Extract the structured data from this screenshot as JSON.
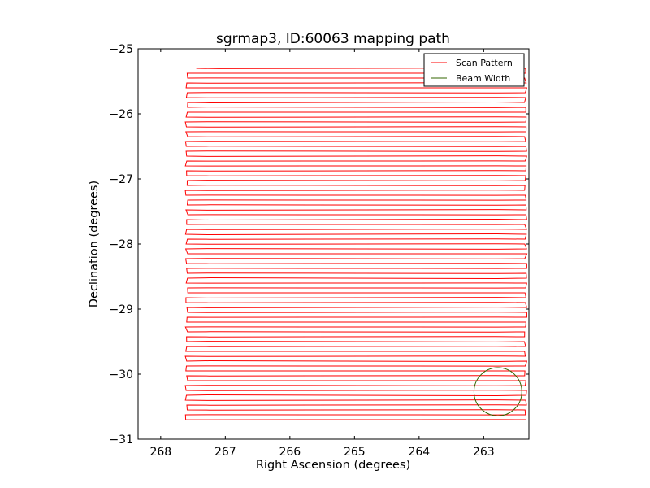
{
  "chart_data": {
    "type": "line",
    "title": "sgrmap3, ID:60063 mapping path",
    "xlabel": "Right Ascension (degrees)",
    "ylabel": "Declination (degrees)",
    "xlim": [
      268.35,
      262.3
    ],
    "ylim": [
      -31,
      -25
    ],
    "x_reversed": true,
    "xticks": [
      268,
      267,
      266,
      265,
      264,
      263
    ],
    "xtick_labels": [
      "268",
      "267",
      "266",
      "265",
      "264",
      "263"
    ],
    "yticks": [
      -25,
      -26,
      -27,
      -28,
      -29,
      -30,
      -31
    ],
    "ytick_labels": [
      "−25",
      "−26",
      "−27",
      "−28",
      "−29",
      "−30",
      "−31"
    ],
    "grid": false,
    "legend_position": "top-right",
    "series": [
      {
        "name": "Scan Pattern",
        "color": "#ff0000",
        "pattern": "boustrophedon raster",
        "ra_range": [
          267.6,
          262.35
        ],
        "first_leg_start_ra": 267.45,
        "dec_start": -25.3,
        "dec_end": -30.7,
        "row_spacing": 0.075
      },
      {
        "name": "Beam Width",
        "color": "#336600",
        "shape": "circle",
        "center": [
          262.78,
          -30.27
        ],
        "radius": 0.37
      }
    ]
  }
}
